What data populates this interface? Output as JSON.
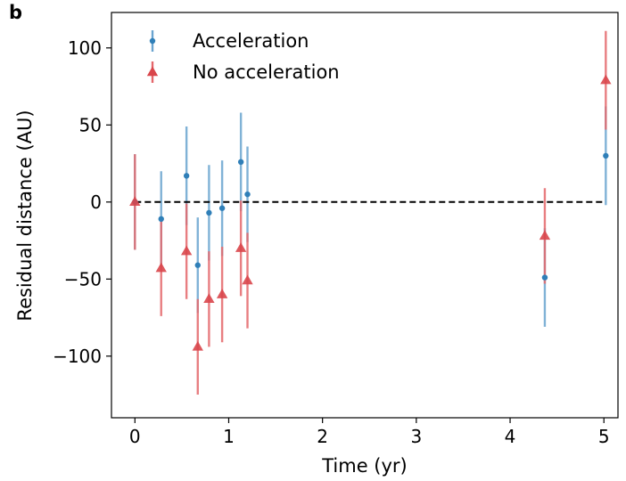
{
  "panel_label": "b",
  "chart_data": {
    "type": "scatter",
    "xlabel": "Time (yr)",
    "ylabel": "Residual distance (AU)",
    "xlim": [
      -0.25,
      5.15
    ],
    "ylim": [
      -140,
      123
    ],
    "xticks": [
      0,
      1,
      2,
      3,
      4,
      5
    ],
    "yticks": [
      100,
      50,
      0,
      -50,
      -100
    ],
    "ytick_labels": [
      "100",
      "50",
      "0",
      "−50",
      "−100"
    ],
    "grid": false,
    "legend_position": "top-left",
    "reference_line": {
      "y": 0,
      "x_range": [
        0,
        5.02
      ],
      "style": "dashed",
      "color": "#000000"
    },
    "series": [
      {
        "name": "Acceleration",
        "marker": "circle",
        "color": "#2f7fb8",
        "errorbar_color": "#6aa4cf",
        "points": [
          {
            "x": 0.0,
            "y": 0,
            "err": 31
          },
          {
            "x": 0.28,
            "y": -11,
            "err": 31
          },
          {
            "x": 0.55,
            "y": 17,
            "err": 32
          },
          {
            "x": 0.67,
            "y": -41,
            "err": 31
          },
          {
            "x": 0.79,
            "y": -7,
            "err": 31
          },
          {
            "x": 0.93,
            "y": -4,
            "err": 31
          },
          {
            "x": 1.13,
            "y": 26,
            "err": 32
          },
          {
            "x": 1.2,
            "y": 5,
            "err": 31
          },
          {
            "x": 4.37,
            "y": -49,
            "err": 32
          },
          {
            "x": 5.02,
            "y": 30,
            "err": 32
          }
        ]
      },
      {
        "name": "No acceleration",
        "marker": "triangle",
        "color": "#d9464b",
        "errorbar_color": "#e4676b",
        "points": [
          {
            "x": 0.0,
            "y": 0,
            "err": 31
          },
          {
            "x": 0.28,
            "y": -43,
            "err": 31
          },
          {
            "x": 0.55,
            "y": -32,
            "err": 31
          },
          {
            "x": 0.67,
            "y": -94,
            "err": 31
          },
          {
            "x": 0.79,
            "y": -63,
            "err": 31
          },
          {
            "x": 0.93,
            "y": -60,
            "err": 31
          },
          {
            "x": 1.13,
            "y": -30,
            "err": 31
          },
          {
            "x": 1.2,
            "y": -51,
            "err": 31
          },
          {
            "x": 4.37,
            "y": -22,
            "err": 31
          },
          {
            "x": 5.02,
            "y": 79,
            "err": 32
          }
        ]
      }
    ]
  }
}
